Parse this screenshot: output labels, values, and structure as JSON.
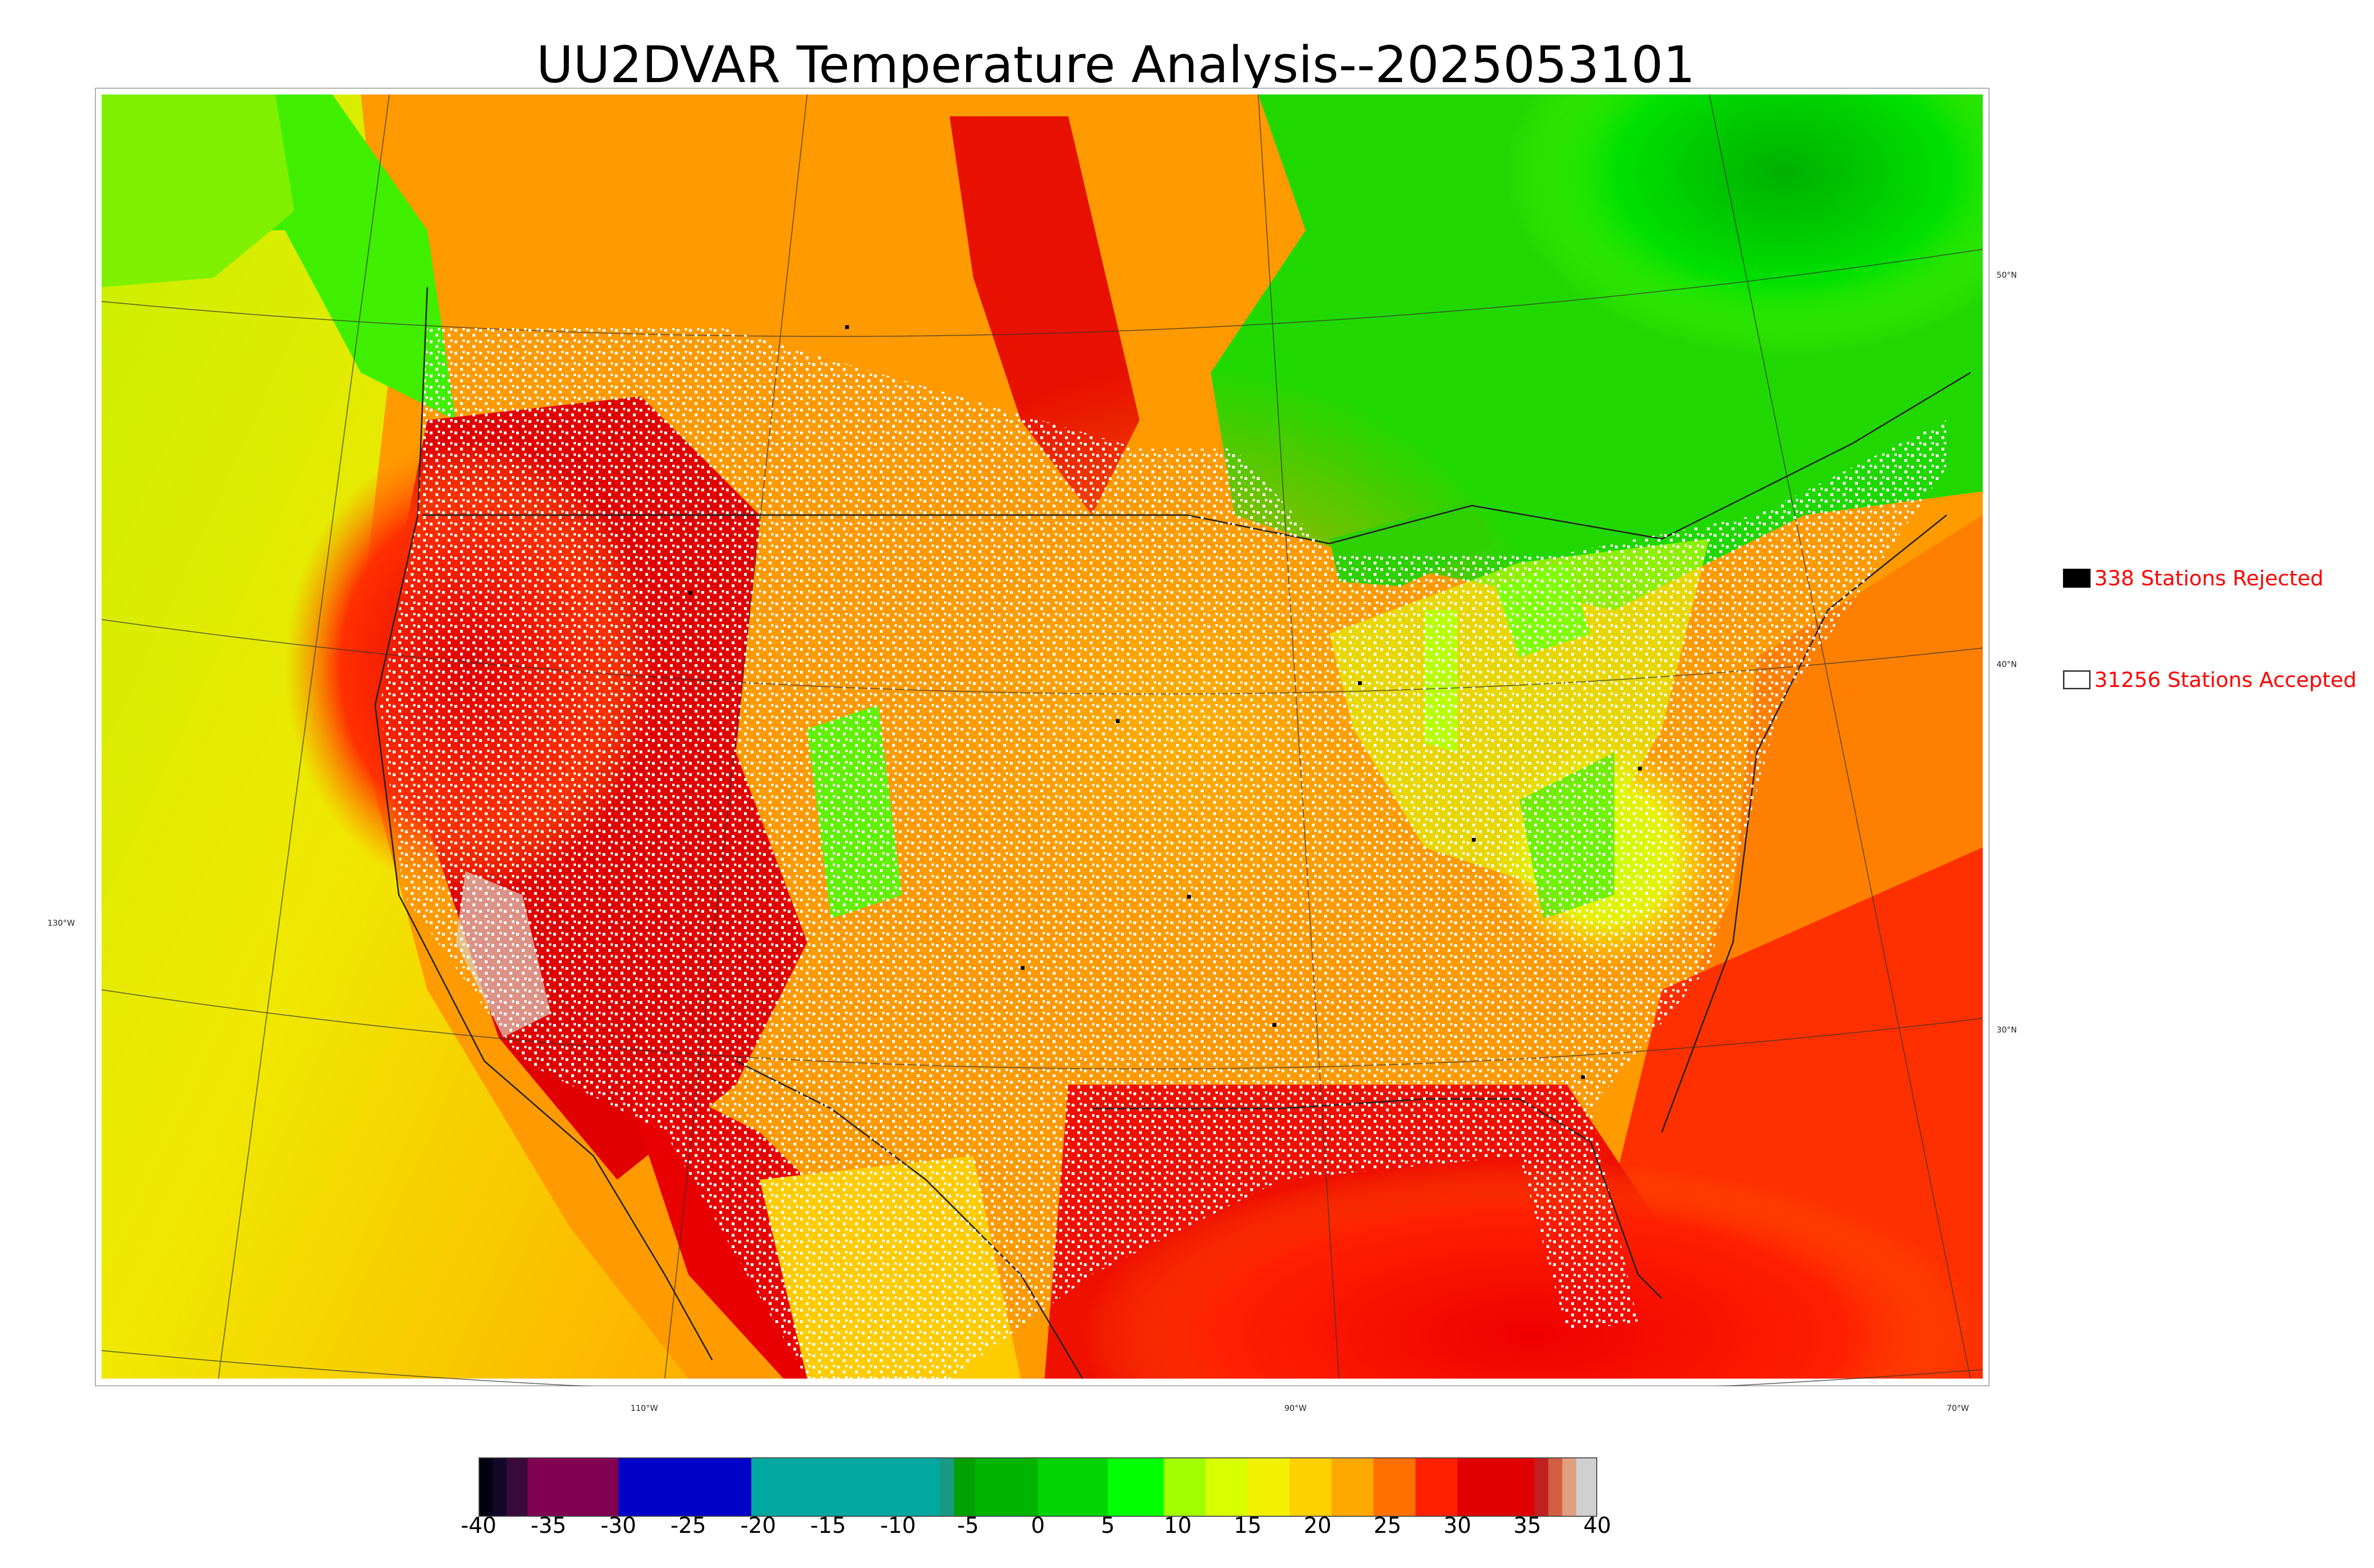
{
  "title": "UU2DVAR Temperature Analysis--2025053101",
  "legend": {
    "rejected": {
      "label": "338 Stations Rejected",
      "swatch": "#000000"
    },
    "accepted": {
      "label": "31256 Stations Accepted",
      "swatch": "#ffffff"
    }
  },
  "lat_labels": [
    "50°N",
    "40°N",
    "30°N"
  ],
  "lon_labels": [
    "130°W",
    "110°W",
    "90°W",
    "70°W"
  ],
  "colorbar": {
    "ticks": [
      "-40",
      "-35",
      "-30",
      "-25",
      "-20",
      "-15",
      "-10",
      "-5",
      "0",
      "5",
      "10",
      "15",
      "20",
      "25",
      "30",
      "35",
      "40"
    ],
    "segments": [
      {
        "from": -40,
        "to": -39,
        "color": "#050010"
      },
      {
        "from": -39,
        "to": -38,
        "color": "#140828"
      },
      {
        "from": -38,
        "to": -36.5,
        "color": "#3a0a3a"
      },
      {
        "from": -36.5,
        "to": -30,
        "color": "#820050"
      },
      {
        "from": -30,
        "to": -20.5,
        "color": "#0000c8"
      },
      {
        "from": -20.5,
        "to": -14,
        "color": "#00a8a0"
      },
      {
        "from": -14,
        "to": -7,
        "color": "#00a8a0"
      },
      {
        "from": -7,
        "to": -6,
        "color": "#1a9a80"
      },
      {
        "from": -6,
        "to": -4.5,
        "color": "#00a000"
      },
      {
        "from": -4.5,
        "to": 0,
        "color": "#00b400"
      },
      {
        "from": 0,
        "to": 5,
        "color": "#00d400"
      },
      {
        "from": 5,
        "to": 9,
        "color": "#00ff00"
      },
      {
        "from": 9,
        "to": 12,
        "color": "#a0ff00"
      },
      {
        "from": 12,
        "to": 15,
        "color": "#d8ff00"
      },
      {
        "from": 15,
        "to": 18,
        "color": "#f0f000"
      },
      {
        "from": 18,
        "to": 21,
        "color": "#ffd000"
      },
      {
        "from": 21,
        "to": 24,
        "color": "#ffa800"
      },
      {
        "from": 24,
        "to": 27,
        "color": "#ff7000"
      },
      {
        "from": 27,
        "to": 30,
        "color": "#ff2000"
      },
      {
        "from": 30,
        "to": 35.5,
        "color": "#e00000"
      },
      {
        "from": 35.5,
        "to": 36.5,
        "color": "#c02020"
      },
      {
        "from": 36.5,
        "to": 37.5,
        "color": "#d06040"
      },
      {
        "from": 37.5,
        "to": 38.5,
        "color": "#e0a080"
      },
      {
        "from": 38.5,
        "to": 40,
        "color": "#d0d0d0"
      }
    ]
  }
}
